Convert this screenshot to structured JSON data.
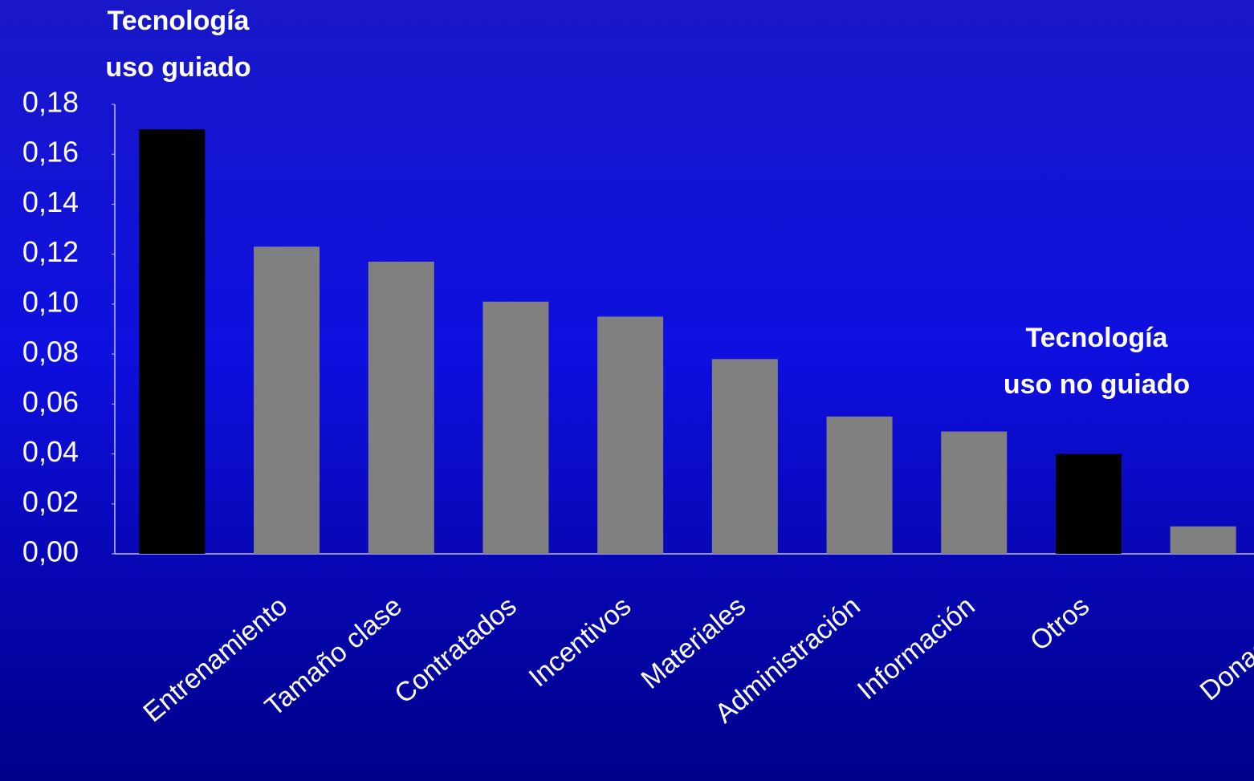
{
  "chart_data": {
    "type": "bar",
    "categories": [
      "Entrenamiento",
      "Tamaño clase",
      "Contratados",
      "Incentivos",
      "Materiales",
      "Administración",
      "Información",
      "Otros",
      null,
      "Donaciones"
    ],
    "values": [
      0.17,
      0.123,
      0.117,
      0.101,
      0.095,
      0.078,
      0.055,
      0.049,
      0.04,
      0.011
    ],
    "colors": [
      "#000000",
      "#808080",
      "#808080",
      "#808080",
      "#808080",
      "#808080",
      "#808080",
      "#808080",
      "#000000",
      "#808080"
    ],
    "ylim": [
      0,
      0.18
    ],
    "yticks": [
      {
        "value": 0,
        "label": "0,00"
      },
      {
        "value": 0.02,
        "label": "0,02"
      },
      {
        "value": 0.04,
        "label": "0,04"
      },
      {
        "value": 0.06,
        "label": "0,06"
      },
      {
        "value": 0.08,
        "label": "0,08"
      },
      {
        "value": 0.1,
        "label": "0,10"
      },
      {
        "value": 0.12,
        "label": "0,12"
      },
      {
        "value": 0.14,
        "label": "0,14"
      },
      {
        "value": 0.16,
        "label": "0,16"
      },
      {
        "value": 0.18,
        "label": "0,18"
      }
    ],
    "grid": false,
    "annotations": [
      [
        "Tecnología",
        "uso guiado"
      ],
      [
        "Tecnología",
        "uso no guiado"
      ]
    ]
  }
}
